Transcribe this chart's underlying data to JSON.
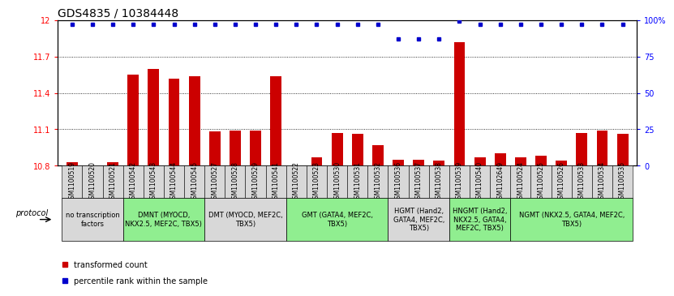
{
  "title": "GDS4835 / 10384448",
  "samples": [
    "GSM1100519",
    "GSM1100520",
    "GSM1100521",
    "GSM1100542",
    "GSM1100543",
    "GSM1100544",
    "GSM1100545",
    "GSM1100527",
    "GSM1100528",
    "GSM1100529",
    "GSM1100541",
    "GSM1100522",
    "GSM1100523",
    "GSM1100530",
    "GSM1100531",
    "GSM1100532",
    "GSM1100536",
    "GSM1100537",
    "GSM1100538",
    "GSM1100539",
    "GSM1100540",
    "GSM1102649",
    "GSM1100524",
    "GSM1100525",
    "GSM1100526",
    "GSM1100533",
    "GSM1100534",
    "GSM1100535"
  ],
  "bar_values": [
    10.83,
    10.79,
    10.83,
    11.55,
    11.6,
    11.52,
    11.54,
    11.08,
    11.09,
    11.09,
    11.54,
    10.8,
    10.87,
    11.07,
    11.06,
    10.97,
    10.85,
    10.85,
    10.84,
    11.82,
    10.87,
    10.9,
    10.87,
    10.88,
    10.84,
    11.07,
    11.09,
    11.06
  ],
  "percentile_values": [
    97,
    97,
    97,
    97,
    97,
    97,
    97,
    97,
    97,
    97,
    97,
    97,
    97,
    97,
    97,
    97,
    87,
    87,
    87,
    99,
    97,
    97,
    97,
    97,
    97,
    97,
    97,
    97
  ],
  "ymin": 10.8,
  "ymax": 12.0,
  "yticks": [
    10.8,
    11.1,
    11.4,
    11.7,
    12.0
  ],
  "ytick_labels": [
    "10.8",
    "11.1",
    "11.4",
    "11.7",
    "12"
  ],
  "y2min": 0,
  "y2max": 100,
  "y2ticks": [
    0,
    25,
    50,
    75,
    100
  ],
  "y2tick_labels": [
    "0",
    "25",
    "50",
    "75",
    "100%"
  ],
  "bar_color": "#cc0000",
  "dot_color": "#0000cc",
  "gridline_values": [
    11.1,
    11.4,
    11.7
  ],
  "groups": [
    {
      "label": "no transcription\nfactors",
      "start": 0,
      "end": 3,
      "color": "#d8d8d8"
    },
    {
      "label": "DMNT (MYOCD,\nNKX2.5, MEF2C, TBX5)",
      "start": 3,
      "end": 7,
      "color": "#90ee90"
    },
    {
      "label": "DMT (MYOCD, MEF2C,\nTBX5)",
      "start": 7,
      "end": 11,
      "color": "#d8d8d8"
    },
    {
      "label": "GMT (GATA4, MEF2C,\nTBX5)",
      "start": 11,
      "end": 16,
      "color": "#90ee90"
    },
    {
      "label": "HGMT (Hand2,\nGATA4, MEF2C,\nTBX5)",
      "start": 16,
      "end": 19,
      "color": "#d8d8d8"
    },
    {
      "label": "HNGMT (Hand2,\nNKX2.5, GATA4,\nMEF2C, TBX5)",
      "start": 19,
      "end": 22,
      "color": "#90ee90"
    },
    {
      "label": "NGMT (NKX2.5, GATA4, MEF2C,\nTBX5)",
      "start": 22,
      "end": 28,
      "color": "#90ee90"
    }
  ],
  "protocol_label": "protocol",
  "legend_bar_label": "transformed count",
  "legend_dot_label": "percentile rank within the sample",
  "title_fontsize": 10,
  "tick_fontsize": 7,
  "sample_fontsize": 5.5,
  "group_fontsize": 6,
  "legend_fontsize": 7,
  "bar_width": 0.55,
  "fig_width": 8.16,
  "fig_height": 3.63
}
